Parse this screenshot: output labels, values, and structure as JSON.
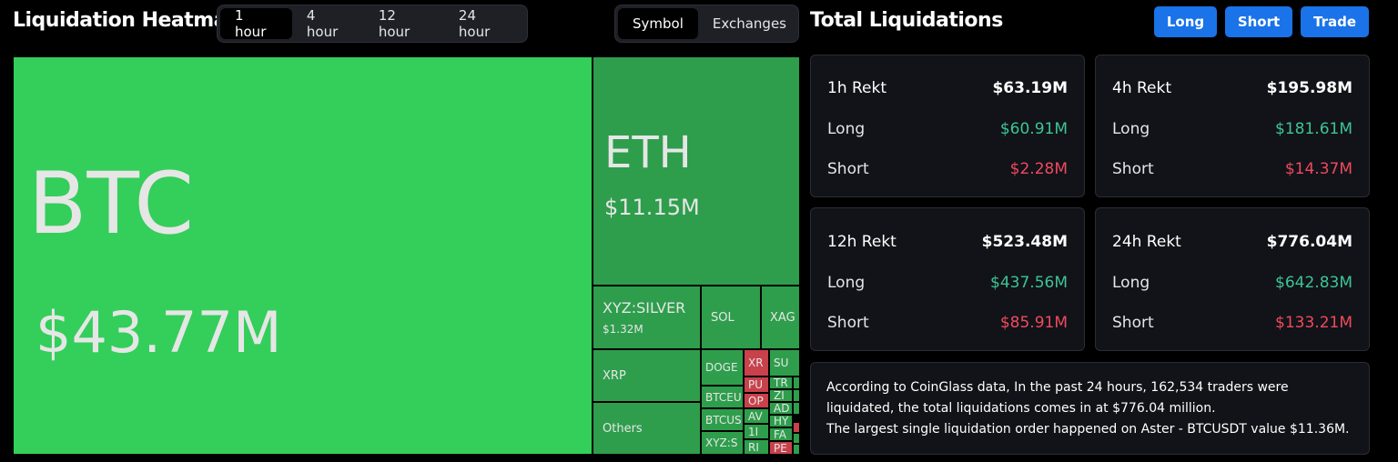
{
  "heatmap_title": "Liquidation Heatmap",
  "time_options": [
    "1 hour",
    "4 hour",
    "12 hour",
    "24 hour"
  ],
  "view_options": [
    "Symbol",
    "Exchanges"
  ],
  "total_title": "Total Liquidations",
  "buttons": {
    "long": "Long",
    "short": "Short",
    "trade": "Trade"
  },
  "colors": {
    "green_cell": "#2e9e4c",
    "btc_cell": "#34ce5b",
    "red_cell": "#c8414b",
    "long_text": "#3ec495",
    "short_text": "#f0495e",
    "button": "#1a73e8"
  },
  "treemap": {
    "btc": {
      "symbol": "BTC",
      "value": "$43.77M"
    },
    "eth": {
      "symbol": "ETH",
      "value": "$11.15M"
    },
    "silver": {
      "symbol": "XYZ:SILVER",
      "value": "$1.32M"
    },
    "sol": "SOL",
    "xag": "XAG",
    "xrp": "XRP",
    "others": "Others",
    "doge": "DOGE",
    "btceu": "BTCEU",
    "btcus": "BTCUS",
    "xyzs": "XYZ:S",
    "xr": "XR",
    "su": "SU",
    "pu": "PU",
    "tr": "TR",
    "op": "OP",
    "zi": "ZI",
    "av": "AV",
    "ad": "AD",
    "hy": "HY",
    "n1": "1I",
    "fa": "FA",
    "ri": "RI",
    "pe": "PE"
  },
  "cards": [
    {
      "title": "1h Rekt",
      "total": "$63.19M",
      "long_label": "Long",
      "long": "$60.91M",
      "short_label": "Short",
      "short": "$2.28M"
    },
    {
      "title": "4h Rekt",
      "total": "$195.98M",
      "long_label": "Long",
      "long": "$181.61M",
      "short_label": "Short",
      "short": "$14.37M"
    },
    {
      "title": "12h Rekt",
      "total": "$523.48M",
      "long_label": "Long",
      "long": "$437.56M",
      "short_label": "Short",
      "short": "$85.91M"
    },
    {
      "title": "24h Rekt",
      "total": "$776.04M",
      "long_label": "Long",
      "long": "$642.83M",
      "short_label": "Short",
      "short": "$133.21M"
    }
  ],
  "info": {
    "line1": "According to CoinGlass data, In the past 24 hours, 162,534 traders were liquidated, the total liquidations comes in at $776.04 million.",
    "line2": "The largest single liquidation order happened on Aster - BTCUSDT value $11.36M."
  }
}
